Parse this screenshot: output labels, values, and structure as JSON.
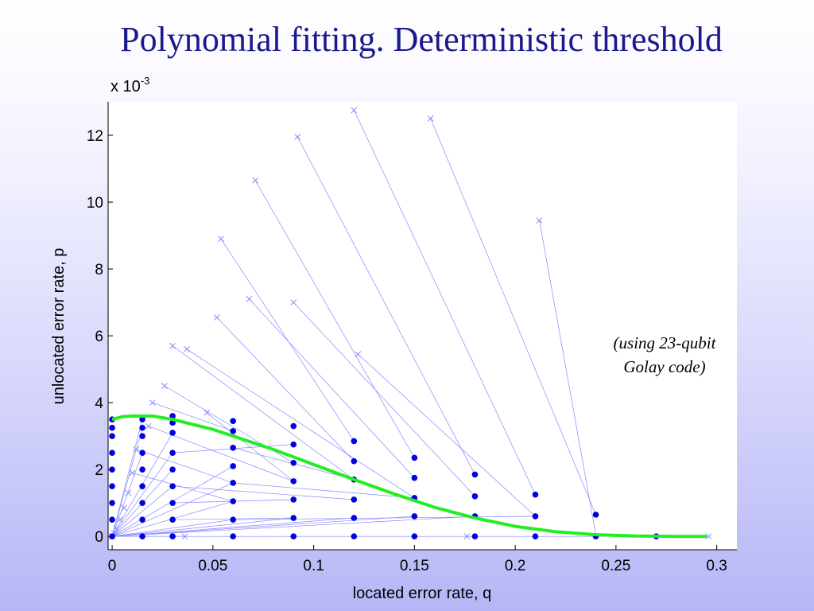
{
  "slide": {
    "title": "Polynomial fitting. Deterministic threshold"
  },
  "chart_data": {
    "type": "scatter",
    "title": "",
    "xlabel": "located error rate, q",
    "ylabel": "unlocated error rate, p",
    "y_exponent_label": "x 10",
    "y_exponent_power": "-3",
    "xlim": [
      -0.002,
      0.31
    ],
    "ylim": [
      -0.4,
      13
    ],
    "xticks": [
      0,
      0.05,
      0.1,
      0.15,
      0.2,
      0.25,
      0.3
    ],
    "xtick_labels": [
      "0",
      "0.05",
      "0.1",
      "0.15",
      "0.2",
      "0.25",
      "0.3"
    ],
    "yticks": [
      0,
      2,
      4,
      6,
      8,
      10,
      12
    ],
    "ytick_labels": [
      "0",
      "2",
      "4",
      "6",
      "8",
      "10",
      "12"
    ],
    "grid": false,
    "annotation": [
      "(using 23-qubit",
      "Golay code)"
    ],
    "colors": {
      "points": "#0000e0",
      "lines": "#8888ff",
      "fit": "#22ee22",
      "frame": "#ffffff"
    },
    "points": [
      [
        0,
        0
      ],
      [
        0,
        0.5
      ],
      [
        0,
        1
      ],
      [
        0,
        1.5
      ],
      [
        0,
        2
      ],
      [
        0,
        2.5
      ],
      [
        0,
        3
      ],
      [
        0,
        3.25
      ],
      [
        0,
        3.5
      ],
      [
        0.015,
        0
      ],
      [
        0.015,
        0.5
      ],
      [
        0.015,
        1
      ],
      [
        0.015,
        1.5
      ],
      [
        0.015,
        2
      ],
      [
        0.015,
        2.5
      ],
      [
        0.015,
        3
      ],
      [
        0.015,
        3.25
      ],
      [
        0.015,
        3.5
      ],
      [
        0.03,
        0
      ],
      [
        0.03,
        0.5
      ],
      [
        0.03,
        1
      ],
      [
        0.03,
        1.5
      ],
      [
        0.03,
        2
      ],
      [
        0.03,
        2.5
      ],
      [
        0.03,
        3.1
      ],
      [
        0.03,
        3.4
      ],
      [
        0.03,
        3.6
      ],
      [
        0.06,
        0
      ],
      [
        0.06,
        0.5
      ],
      [
        0.06,
        1.05
      ],
      [
        0.06,
        1.6
      ],
      [
        0.06,
        2.1
      ],
      [
        0.06,
        2.65
      ],
      [
        0.06,
        3.15
      ],
      [
        0.06,
        3.45
      ],
      [
        0.09,
        0
      ],
      [
        0.09,
        0.55
      ],
      [
        0.09,
        1.1
      ],
      [
        0.09,
        1.65
      ],
      [
        0.09,
        2.2
      ],
      [
        0.09,
        2.75
      ],
      [
        0.09,
        3.3
      ],
      [
        0.12,
        0
      ],
      [
        0.12,
        0.55
      ],
      [
        0.12,
        1.1
      ],
      [
        0.12,
        1.7
      ],
      [
        0.12,
        2.25
      ],
      [
        0.12,
        2.85
      ],
      [
        0.15,
        0
      ],
      [
        0.15,
        0.6
      ],
      [
        0.15,
        1.15
      ],
      [
        0.15,
        1.75
      ],
      [
        0.15,
        2.35
      ],
      [
        0.18,
        0
      ],
      [
        0.18,
        0.6
      ],
      [
        0.18,
        1.2
      ],
      [
        0.18,
        1.85
      ],
      [
        0.21,
        0
      ],
      [
        0.21,
        0.6
      ],
      [
        0.21,
        1.25
      ],
      [
        0.24,
        0
      ],
      [
        0.24,
        0.65
      ],
      [
        0.27,
        0
      ]
    ],
    "crosses": [
      [
        0,
        0
      ],
      [
        0.001,
        0.1
      ],
      [
        0.002,
        0.25
      ],
      [
        0.004,
        0.5
      ],
      [
        0.006,
        0.85
      ],
      [
        0.008,
        1.3
      ],
      [
        0.01,
        1.9
      ],
      [
        0.012,
        2.6
      ],
      [
        0.018,
        3.3
      ],
      [
        0.02,
        4.0
      ],
      [
        0.026,
        4.5
      ],
      [
        0.03,
        5.7
      ],
      [
        0.037,
        5.6
      ],
      [
        0.036,
        0
      ],
      [
        0.047,
        3.7
      ],
      [
        0.052,
        6.55
      ],
      [
        0.054,
        8.9
      ],
      [
        0.068,
        7.1
      ],
      [
        0.071,
        10.65
      ],
      [
        0.09,
        7.0
      ],
      [
        0.092,
        11.95
      ],
      [
        0.122,
        5.45
      ],
      [
        0.12,
        12.75
      ],
      [
        0.158,
        12.5
      ],
      [
        0.212,
        9.45
      ],
      [
        0.176,
        0
      ],
      [
        0.296,
        0
      ]
    ],
    "segments": [
      [
        0.03,
        5.7,
        0.12,
        1.7
      ],
      [
        0.037,
        5.6,
        0.15,
        1.15
      ],
      [
        0.052,
        6.55,
        0.12,
        2.25
      ],
      [
        0.054,
        8.9,
        0.12,
        2.85
      ],
      [
        0.068,
        7.1,
        0.15,
        1.75
      ],
      [
        0.071,
        10.65,
        0.15,
        2.35
      ],
      [
        0.09,
        7.0,
        0.18,
        1.2
      ],
      [
        0.092,
        11.95,
        0.18,
        1.85
      ],
      [
        0.122,
        5.45,
        0.21,
        0.6
      ],
      [
        0.12,
        12.75,
        0.21,
        1.25
      ],
      [
        0.158,
        12.5,
        0.24,
        0.65
      ],
      [
        0.212,
        9.45,
        0.24,
        0.05
      ],
      [
        0.026,
        4.5,
        0.09,
        2.2
      ],
      [
        0.047,
        3.7,
        0.09,
        1.65
      ],
      [
        0.02,
        4.0,
        0.06,
        3.15
      ],
      [
        0,
        0,
        0.18,
        0.6
      ],
      [
        0,
        0,
        0.15,
        0.6
      ],
      [
        0,
        0,
        0.12,
        0.55
      ],
      [
        0,
        0,
        0.09,
        0.55
      ],
      [
        0,
        0,
        0.06,
        0.5
      ],
      [
        0,
        0,
        0.06,
        1.05
      ],
      [
        0,
        0,
        0.06,
        1.6
      ],
      [
        0,
        0,
        0.06,
        2.1
      ],
      [
        0,
        0,
        0.03,
        3.1
      ],
      [
        0,
        0,
        0.03,
        2.5
      ],
      [
        0,
        0,
        0.03,
        2.0
      ],
      [
        0,
        0,
        0.03,
        1.5
      ],
      [
        0,
        0,
        0.015,
        3.25
      ],
      [
        0,
        0,
        0.015,
        2.5
      ],
      [
        0,
        0,
        0.015,
        3.5
      ],
      [
        0.03,
        0.5,
        0.09,
        0.55
      ],
      [
        0.03,
        1.0,
        0.09,
        1.1
      ],
      [
        0.03,
        1.5,
        0.12,
        1.1
      ],
      [
        0.03,
        2.5,
        0.09,
        2.75
      ],
      [
        0.06,
        0.5,
        0.21,
        0.6
      ],
      [
        0.06,
        1.6,
        0.15,
        1.15
      ],
      [
        0.06,
        2.65,
        0.12,
        1.7
      ],
      [
        0.01,
        1.9,
        0.06,
        1.05
      ],
      [
        0.012,
        2.6,
        0.06,
        1.6
      ],
      [
        0.018,
        3.3,
        0.09,
        1.65
      ],
      [
        0,
        0,
        0.296,
        0
      ],
      [
        0,
        0,
        0.036,
        0
      ]
    ],
    "fit_curve": [
      [
        0,
        3.5
      ],
      [
        0.005,
        3.58
      ],
      [
        0.01,
        3.6
      ],
      [
        0.02,
        3.6
      ],
      [
        0.03,
        3.5
      ],
      [
        0.04,
        3.35
      ],
      [
        0.05,
        3.2
      ],
      [
        0.06,
        3.0
      ],
      [
        0.08,
        2.6
      ],
      [
        0.1,
        2.15
      ],
      [
        0.12,
        1.7
      ],
      [
        0.14,
        1.27
      ],
      [
        0.16,
        0.87
      ],
      [
        0.18,
        0.55
      ],
      [
        0.2,
        0.3
      ],
      [
        0.22,
        0.14
      ],
      [
        0.24,
        0.05
      ],
      [
        0.26,
        0.01
      ],
      [
        0.28,
        0.0
      ],
      [
        0.295,
        0.0
      ]
    ]
  }
}
